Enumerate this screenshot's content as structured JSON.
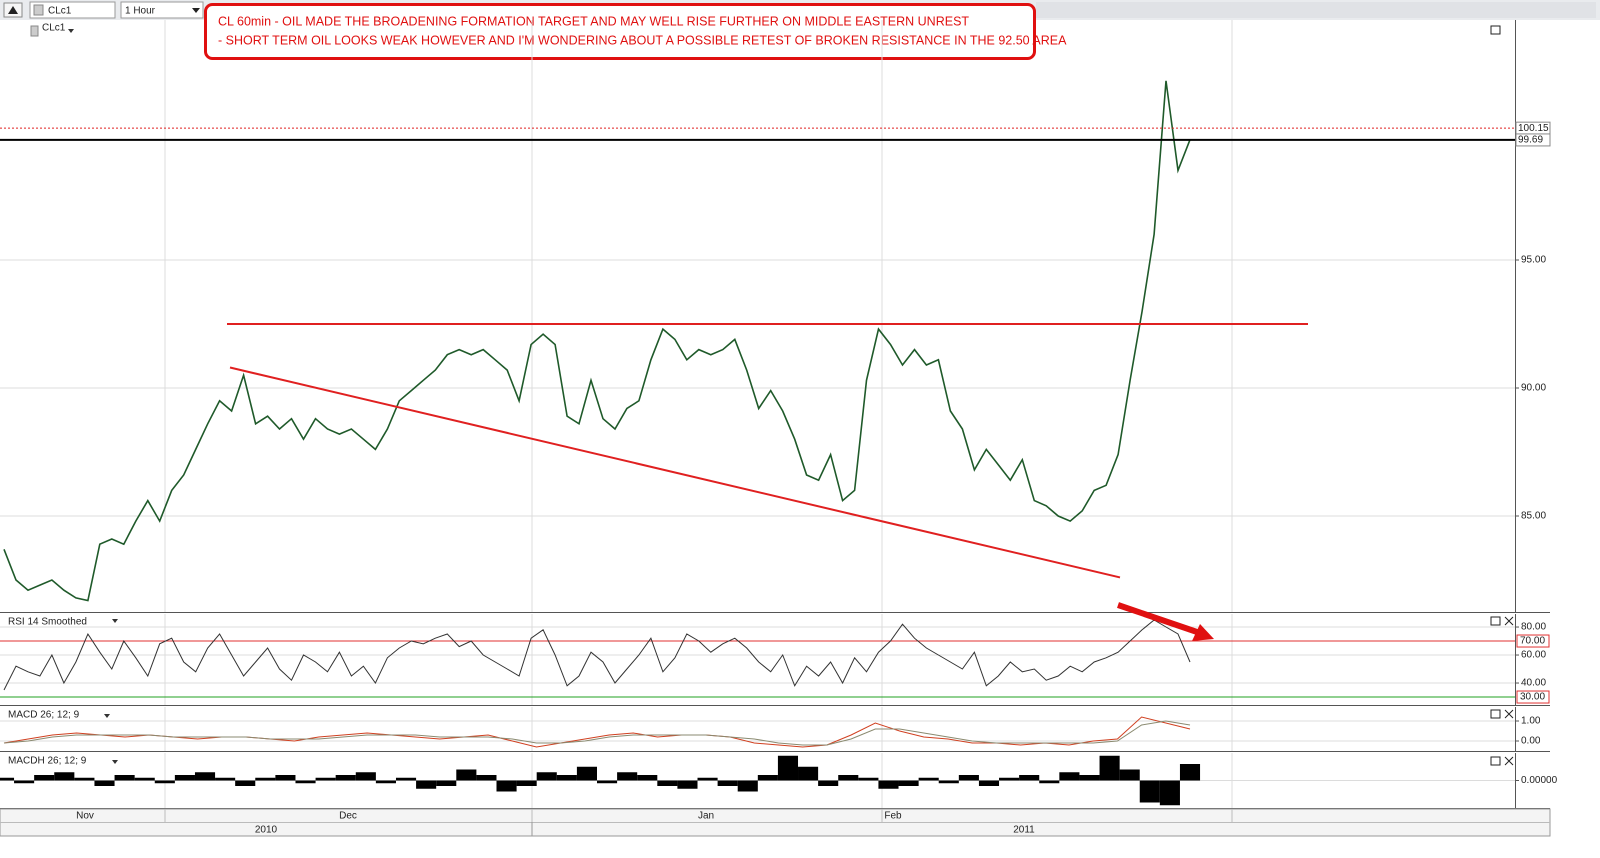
{
  "toolbar": {
    "symbol": "CLc1",
    "interval": "1 Hour"
  },
  "annotation": [
    "CL 60min - OIL MADE THE BROADENING FORMATION TARGET AND MAY WELL RISE FURTHER ON MIDDLE EASTERN UNREST",
    "- SHORT TERM OIL LOOKS WEAK HOWEVER AND I'M WONDERING ABOUT A POSSIBLE RETEST OF BROKEN RESISTANCE IN THE 92.50 AREA"
  ],
  "x_axis": {
    "months": [
      "Nov",
      "Dec",
      "Jan",
      "Feb"
    ],
    "years": [
      "2010",
      "2011"
    ]
  },
  "chart_data": [
    {
      "type": "line",
      "title": "CLc1",
      "ylim": [
        81.25,
        104.375
      ],
      "yticks": [
        {
          "value": 85,
          "label": "85.00"
        },
        {
          "value": 90,
          "label": "90.00"
        },
        {
          "value": 95,
          "label": "95.00"
        }
      ],
      "grid": true,
      "hlines": [
        {
          "value": 100.15,
          "label": "100.15",
          "color": "#e02020",
          "dash": "2,2",
          "label_color": "#222"
        },
        {
          "value": 99.69,
          "label": "99.69",
          "color": "#000000",
          "dash": "",
          "label_color": "#e02020"
        }
      ],
      "trendlines": [
        {
          "values": [
            92.5,
            92.5
          ],
          "color": "#e02020"
        },
        {
          "values": [
            90.8,
            82.6
          ],
          "color": "#e02020"
        }
      ],
      "series": [
        {
          "color": "#1f5a2a",
          "values": [
            83.7,
            82.5,
            82.1,
            82.3,
            82.5,
            82.1,
            81.8,
            81.7,
            83.9,
            84.1,
            83.9,
            84.8,
            85.6,
            84.8,
            86.0,
            86.6,
            87.6,
            88.6,
            89.5,
            89.1,
            90.5,
            88.6,
            88.9,
            88.4,
            88.8,
            88.0,
            88.8,
            88.4,
            88.2,
            88.4,
            88.0,
            87.6,
            88.4,
            89.5,
            89.9,
            90.3,
            90.7,
            91.3,
            91.5,
            91.3,
            91.5,
            91.1,
            90.7,
            89.5,
            91.7,
            92.1,
            91.7,
            88.9,
            88.6,
            90.3,
            88.8,
            88.4,
            89.2,
            89.5,
            91.1,
            92.3,
            91.9,
            91.1,
            91.5,
            91.3,
            91.5,
            91.9,
            90.7,
            89.2,
            89.9,
            89.1,
            88.0,
            86.6,
            86.4,
            87.4,
            85.6,
            86.0,
            90.3,
            92.3,
            91.7,
            90.9,
            91.5,
            90.9,
            91.1,
            89.1,
            88.4,
            86.8,
            87.6,
            87.0,
            86.4,
            87.2,
            85.6,
            85.4,
            85.0,
            84.8,
            85.2,
            86.0,
            86.2,
            87.4,
            90.3,
            93.0,
            96.0,
            102.0,
            98.5,
            99.7
          ]
        }
      ]
    },
    {
      "type": "line",
      "title": "RSI 14 Smoothed",
      "ylim": [
        24.3,
        89.3
      ],
      "yticks": [
        {
          "value": 80,
          "label": "80.00"
        },
        {
          "value": 60,
          "label": "60.00"
        },
        {
          "value": 40,
          "label": "40.00"
        }
      ],
      "levels": [
        {
          "value": 70,
          "label": "70.00",
          "color": "#e03030"
        },
        {
          "value": 30,
          "label": "30.00",
          "color": "#20a020"
        }
      ],
      "series": [
        {
          "color": "#333333",
          "values": [
            35,
            52,
            48,
            45,
            60,
            40,
            55,
            75,
            62,
            50,
            70,
            58,
            45,
            68,
            72,
            55,
            48,
            65,
            75,
            60,
            45,
            55,
            65,
            50,
            42,
            60,
            55,
            48,
            62,
            45,
            52,
            40,
            58,
            65,
            70,
            68,
            72,
            75,
            66,
            70,
            60,
            55,
            50,
            45,
            72,
            78,
            60,
            38,
            45,
            62,
            55,
            40,
            50,
            60,
            72,
            48,
            58,
            75,
            70,
            62,
            68,
            72,
            65,
            55,
            48,
            60,
            38,
            52,
            45,
            55,
            40,
            58,
            48,
            62,
            70,
            82,
            72,
            65,
            60,
            55,
            50,
            62,
            38,
            45,
            55,
            48,
            50,
            42,
            45,
            52,
            48,
            55,
            58,
            62,
            70,
            78,
            85,
            80,
            75,
            55
          ]
        }
      ]
    },
    {
      "type": "line",
      "title": "MACD 26; 12; 9",
      "title_color": "#1a8a1a",
      "ylim": [
        -0.5,
        1.7
      ],
      "yticks": [
        {
          "value": 1,
          "label": "1.00"
        },
        {
          "value": 0,
          "label": "0.00"
        }
      ],
      "series": [
        {
          "color": "#d04020",
          "values": [
            -0.1,
            0.1,
            0.3,
            0.4,
            0.3,
            0.2,
            0.3,
            0.2,
            0.1,
            0.2,
            0.2,
            0.1,
            0.0,
            0.2,
            0.3,
            0.4,
            0.3,
            0.2,
            0.1,
            0.2,
            0.3,
            0.0,
            -0.3,
            -0.1,
            0.1,
            0.3,
            0.4,
            0.2,
            0.3,
            0.3,
            0.2,
            -0.1,
            -0.2,
            -0.3,
            -0.2,
            0.3,
            0.9,
            0.5,
            0.2,
            0.1,
            -0.1,
            -0.1,
            -0.2,
            -0.1,
            -0.2,
            0.0,
            0.1,
            1.2,
            0.9,
            0.6
          ]
        },
        {
          "color": "#8a8a70",
          "values": [
            -0.1,
            0.0,
            0.2,
            0.3,
            0.3,
            0.3,
            0.3,
            0.2,
            0.2,
            0.2,
            0.2,
            0.1,
            0.1,
            0.1,
            0.2,
            0.3,
            0.3,
            0.3,
            0.2,
            0.2,
            0.2,
            0.1,
            -0.1,
            -0.1,
            0.0,
            0.2,
            0.3,
            0.3,
            0.3,
            0.3,
            0.2,
            0.1,
            -0.1,
            -0.2,
            -0.2,
            0.1,
            0.6,
            0.6,
            0.4,
            0.2,
            0.0,
            -0.1,
            -0.1,
            -0.1,
            -0.1,
            -0.1,
            0.0,
            0.8,
            1.0,
            0.8
          ]
        }
      ]
    },
    {
      "type": "bar",
      "title": "MACDH 26; 12; 9",
      "ylim": [
        -1,
        1
      ],
      "yticks": [
        {
          "value": 0,
          "label": "0.00000"
        }
      ],
      "series": [
        {
          "color": "#000000",
          "values": [
            0.1,
            -0.1,
            0.2,
            0.3,
            0.1,
            -0.2,
            0.2,
            0.1,
            -0.1,
            0.2,
            0.3,
            0.1,
            -0.2,
            0.1,
            0.2,
            -0.1,
            0.1,
            0.2,
            0.3,
            -0.1,
            0.1,
            -0.3,
            -0.2,
            0.4,
            0.2,
            -0.4,
            -0.2,
            0.3,
            0.2,
            0.5,
            -0.1,
            0.3,
            0.2,
            -0.2,
            -0.3,
            0.1,
            -0.2,
            -0.4,
            0.2,
            0.9,
            0.5,
            -0.2,
            0.2,
            0.1,
            -0.3,
            -0.2,
            0.1,
            -0.1,
            0.2,
            -0.2,
            0.1,
            0.2,
            -0.1,
            0.3,
            0.2,
            0.9,
            0.4,
            -0.8,
            -0.9,
            0.6
          ]
        }
      ]
    }
  ]
}
